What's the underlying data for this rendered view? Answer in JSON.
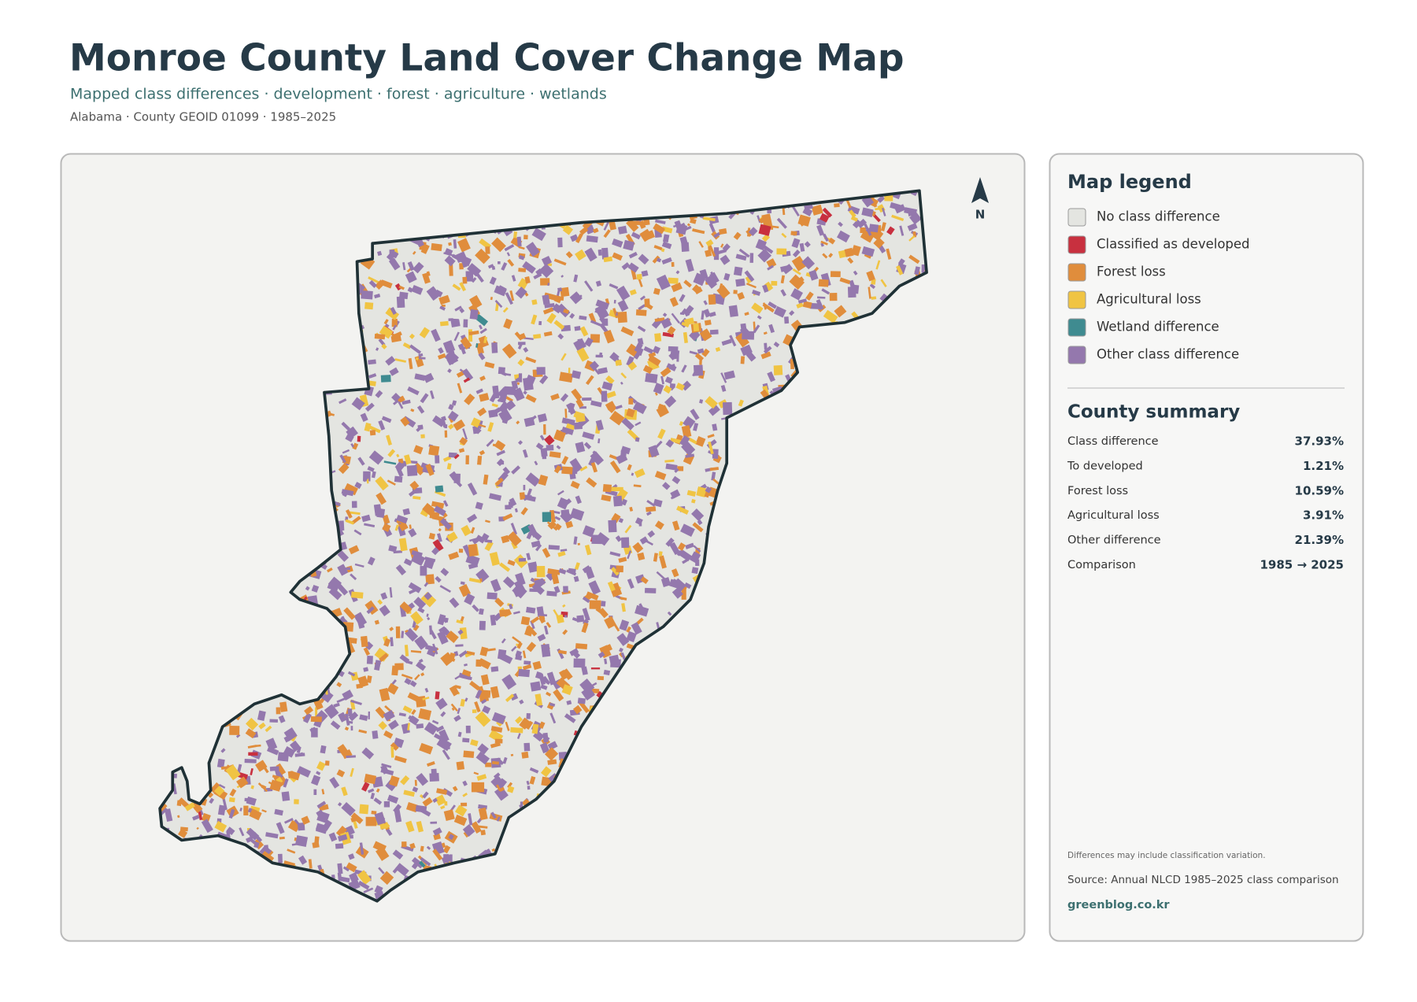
{
  "header": {
    "title": "Monroe County Land Cover Change Map",
    "subtitle": "Mapped class differences · development · forest · agriculture · wetlands",
    "meta": "Alabama · County GEOID 01099 · 1985–2025"
  },
  "map": {
    "north_label": "N"
  },
  "legend": {
    "title": "Map legend",
    "items": [
      {
        "label": "No class difference",
        "color": "#e4e5e1"
      },
      {
        "label": "Classified as developed",
        "color": "#c8303f"
      },
      {
        "label": "Forest loss",
        "color": "#e08d3c"
      },
      {
        "label": "Agricultural loss",
        "color": "#f0c443"
      },
      {
        "label": "Wetland difference",
        "color": "#3f8b90"
      },
      {
        "label": "Other class difference",
        "color": "#9478ad"
      }
    ]
  },
  "summary": {
    "title": "County summary",
    "rows": [
      {
        "label": "Class difference",
        "value": "37.93%"
      },
      {
        "label": "To developed",
        "value": "1.21%"
      },
      {
        "label": "Forest loss",
        "value": "10.59%"
      },
      {
        "label": "Agricultural loss",
        "value": "3.91%"
      },
      {
        "label": "Other difference",
        "value": "21.39%"
      },
      {
        "label": "Comparison",
        "value": "1985 → 2025"
      }
    ]
  },
  "footer": {
    "note": "Differences may include classification variation.",
    "source": "Source: Annual NLCD 1985–2025 class comparison",
    "credit": "greenblog.co.kr"
  }
}
